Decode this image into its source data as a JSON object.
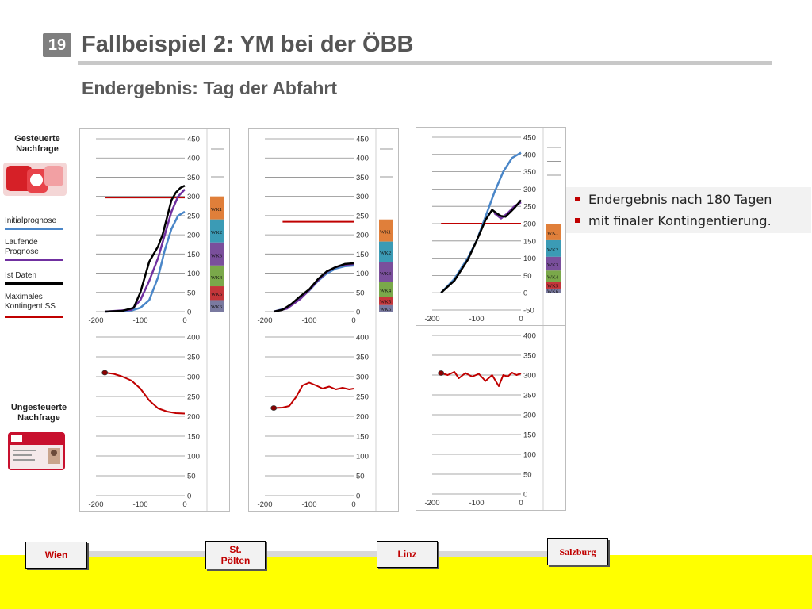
{
  "header": {
    "slide_number": "19",
    "title": "Fallbeispiel 2: YM bei der ÖBB",
    "subtitle": "Endergebnis: Tag der Abfahrt"
  },
  "bullets": [
    "Endergebnis nach 180 Tagen",
    "mit finaler Kontingentierung."
  ],
  "sidebar": {
    "controlled_heading": [
      "Gesteuerte",
      "Nachfrage"
    ],
    "uncontrolled_heading": [
      "Ungesteuerte",
      "Nachfrage"
    ],
    "legend": [
      {
        "label": [
          "Initialprognose"
        ],
        "color": "#4a86c8"
      },
      {
        "label": [
          "Laufende",
          "Prognose"
        ],
        "color": "#7030a0"
      },
      {
        "label": [
          "Ist Daten"
        ],
        "color": "#000000"
      },
      {
        "label": [
          "Maximales",
          "Kontingent SS"
        ],
        "color": "#c00000"
      }
    ]
  },
  "stations": {
    "wien": "Wien",
    "st_poelten": [
      "St.",
      "Pölten"
    ],
    "linz": "Linz",
    "salzburg": "Salzburg"
  },
  "colors": {
    "initial": "#4a86c8",
    "running": "#7030a0",
    "actual": "#000000",
    "quota": "#c00000",
    "bottom_band": "#ffff00"
  },
  "fare_classes": {
    "labels": [
      "WK1",
      "WK2",
      "WK3",
      "WK4",
      "WK5",
      "WK6"
    ],
    "colors": [
      "#e07f3a",
      "#3b9bb5",
      "#7a4f9c",
      "#7aa84a",
      "#c4363a",
      "#7a7aa0"
    ]
  },
  "chart_data": [
    {
      "type": "line",
      "id": "top-wien",
      "x_ticks": [
        -200,
        -100,
        0
      ],
      "y_ticks": [
        0,
        50,
        100,
        150,
        200,
        250,
        300,
        350,
        400,
        450
      ],
      "xlim": [
        -200,
        0
      ],
      "ylim": [
        0,
        450
      ],
      "series": [
        {
          "role": "initial",
          "x": [
            -180,
            -120,
            -100,
            -80,
            -60,
            -45,
            -30,
            -15,
            0
          ],
          "y": [
            0,
            3,
            10,
            30,
            90,
            160,
            215,
            250,
            260
          ]
        },
        {
          "role": "running",
          "x": [
            -180,
            -120,
            -100,
            -80,
            -60,
            -45,
            -30,
            -15,
            0
          ],
          "y": [
            0,
            5,
            30,
            80,
            140,
            200,
            260,
            300,
            318
          ]
        },
        {
          "role": "actual",
          "x": [
            -180,
            -140,
            -115,
            -100,
            -90,
            -80,
            -70,
            -60,
            -50,
            -40,
            -30,
            -20,
            -10,
            0
          ],
          "y": [
            0,
            2,
            10,
            50,
            90,
            130,
            150,
            170,
            200,
            245,
            290,
            310,
            322,
            328
          ]
        },
        {
          "role": "quota",
          "x": [
            -180,
            0
          ],
          "y": [
            297,
            297
          ]
        }
      ],
      "fare_stack": {
        "y_bottom": 0,
        "y_top": 300,
        "fractions": [
          0.2,
          0.2,
          0.2,
          0.18,
          0.12,
          0.1
        ]
      }
    },
    {
      "type": "line",
      "id": "top-stpoelten",
      "x_ticks": [
        -200,
        -100,
        0
      ],
      "y_ticks": [
        0,
        50,
        100,
        150,
        200,
        250,
        300,
        350,
        400,
        450
      ],
      "xlim": [
        -200,
        0
      ],
      "ylim": [
        0,
        450
      ],
      "series": [
        {
          "role": "initial",
          "x": [
            -180,
            -150,
            -120,
            -100,
            -80,
            -60,
            -40,
            -20,
            0
          ],
          "y": [
            0,
            10,
            35,
            55,
            80,
            100,
            112,
            118,
            120
          ]
        },
        {
          "role": "running",
          "x": [
            -180,
            -150,
            -120,
            -100,
            -80,
            -60,
            -40,
            -20,
            0
          ],
          "y": [
            0,
            8,
            33,
            56,
            82,
            104,
            116,
            122,
            124
          ]
        },
        {
          "role": "actual",
          "x": [
            -180,
            -160,
            -140,
            -120,
            -100,
            -80,
            -60,
            -40,
            -20,
            0
          ],
          "y": [
            0,
            5,
            20,
            40,
            58,
            85,
            105,
            116,
            124,
            126
          ]
        },
        {
          "role": "quota",
          "x": [
            -160,
            0
          ],
          "y": [
            234,
            234
          ]
        }
      ],
      "fare_stack": {
        "y_bottom": 0,
        "y_top": 240,
        "fractions": [
          0.24,
          0.22,
          0.22,
          0.16,
          0.09,
          0.07
        ]
      }
    },
    {
      "type": "line",
      "id": "top-linz",
      "x_ticks": [
        -200,
        -100,
        0
      ],
      "y_ticks": [
        -50,
        0,
        50,
        100,
        150,
        200,
        250,
        300,
        350,
        400,
        450
      ],
      "xlim": [
        -200,
        0
      ],
      "ylim": [
        -50,
        450
      ],
      "series": [
        {
          "role": "initial",
          "x": [
            -180,
            -150,
            -120,
            -100,
            -80,
            -60,
            -40,
            -20,
            0
          ],
          "y": [
            0,
            40,
            100,
            150,
            220,
            290,
            350,
            390,
            405
          ]
        },
        {
          "role": "running",
          "x": [
            -60,
            -45,
            -30,
            -15,
            0
          ],
          "y": [
            230,
            215,
            230,
            250,
            262
          ]
        },
        {
          "role": "actual",
          "x": [
            -180,
            -150,
            -120,
            -100,
            -80,
            -65,
            -55,
            -45,
            -35,
            -25,
            -15,
            0
          ],
          "y": [
            0,
            35,
            95,
            150,
            210,
            240,
            230,
            222,
            220,
            232,
            245,
            268
          ]
        },
        {
          "role": "quota",
          "x": [
            -180,
            0
          ],
          "y": [
            200,
            200
          ]
        }
      ],
      "fare_stack": {
        "y_bottom": 0,
        "y_top": 200,
        "fractions": [
          0.24,
          0.24,
          0.2,
          0.16,
          0.1,
          0.06
        ]
      }
    },
    {
      "type": "line",
      "id": "bottom-wien",
      "x_ticks": [
        -200,
        -100,
        0
      ],
      "y_ticks": [
        0,
        50,
        100,
        150,
        200,
        250,
        300,
        350,
        400
      ],
      "xlim": [
        -200,
        0
      ],
      "ylim": [
        0,
        400
      ],
      "series": [
        {
          "role": "quota",
          "x": [
            -180,
            -160,
            -140,
            -120,
            -100,
            -80,
            -60,
            -40,
            -20,
            0
          ],
          "y": [
            310,
            307,
            300,
            290,
            270,
            240,
            220,
            212,
            208,
            207
          ]
        }
      ]
    },
    {
      "type": "line",
      "id": "bottom-stpoelten",
      "x_ticks": [
        -200,
        -100,
        0
      ],
      "y_ticks": [
        0,
        50,
        100,
        150,
        200,
        250,
        300,
        350,
        400
      ],
      "xlim": [
        -200,
        0
      ],
      "ylim": [
        0,
        400
      ],
      "series": [
        {
          "role": "quota",
          "x": [
            -180,
            -160,
            -145,
            -130,
            -115,
            -100,
            -85,
            -70,
            -55,
            -40,
            -25,
            -10,
            0
          ],
          "y": [
            221,
            222,
            226,
            248,
            278,
            285,
            278,
            270,
            275,
            268,
            272,
            268,
            270
          ]
        }
      ]
    },
    {
      "type": "line",
      "id": "bottom-linz",
      "x_ticks": [
        -200,
        -100,
        0
      ],
      "y_ticks": [
        0,
        50,
        100,
        150,
        200,
        250,
        300,
        350,
        400
      ],
      "xlim": [
        -200,
        0
      ],
      "ylim": [
        0,
        400
      ],
      "series": [
        {
          "role": "quota",
          "x": [
            -180,
            -165,
            -150,
            -140,
            -125,
            -110,
            -95,
            -80,
            -65,
            -50,
            -40,
            -30,
            -20,
            -10,
            0
          ],
          "y": [
            305,
            300,
            308,
            292,
            305,
            296,
            303,
            285,
            300,
            272,
            300,
            296,
            306,
            300,
            304
          ]
        }
      ]
    }
  ]
}
